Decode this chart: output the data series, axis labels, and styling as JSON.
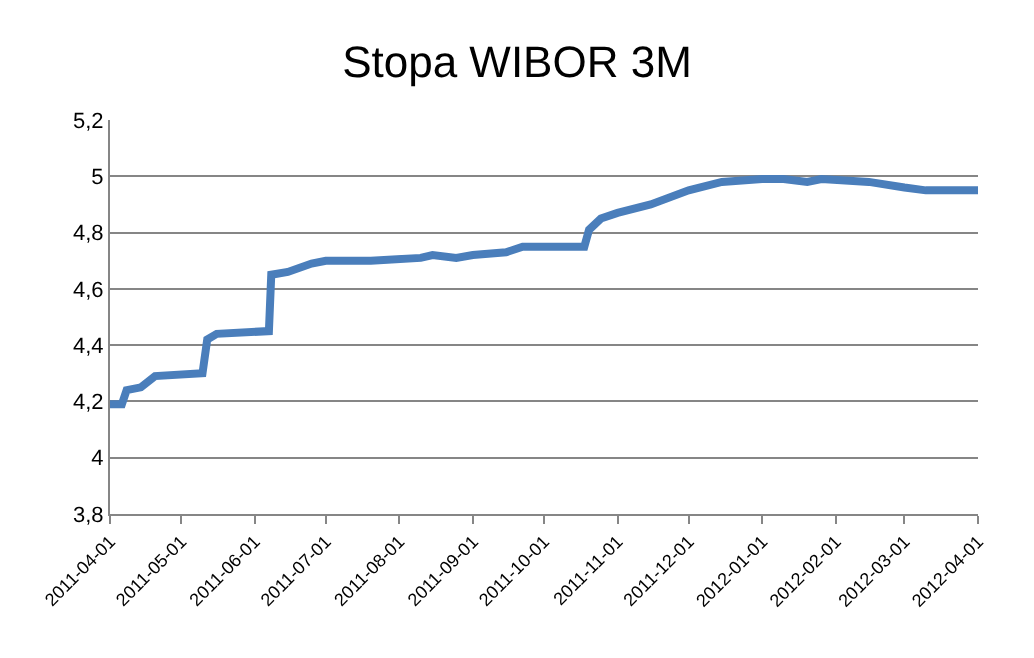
{
  "chart_data": {
    "type": "line",
    "title": "Stopa WIBOR 3M",
    "x": [
      "2011-04-01",
      "2011-04-06",
      "2011-04-08",
      "2011-04-14",
      "2011-04-20",
      "2011-05-10",
      "2011-05-12",
      "2011-05-16",
      "2011-06-07",
      "2011-06-08",
      "2011-06-15",
      "2011-06-25",
      "2011-07-01",
      "2011-07-20",
      "2011-08-10",
      "2011-08-15",
      "2011-08-25",
      "2011-09-01",
      "2011-09-15",
      "2011-09-22",
      "2011-10-18",
      "2011-10-20",
      "2011-10-25",
      "2011-11-01",
      "2011-11-15",
      "2011-12-01",
      "2011-12-15",
      "2012-01-01",
      "2012-01-10",
      "2012-01-20",
      "2012-01-26",
      "2012-02-15",
      "2012-03-01",
      "2012-03-10",
      "2012-04-01"
    ],
    "series": [
      {
        "color": "#4a7ebb",
        "values": [
          4.19,
          4.19,
          4.24,
          4.25,
          4.29,
          4.3,
          4.42,
          4.44,
          4.45,
          4.65,
          4.66,
          4.69,
          4.7,
          4.7,
          4.71,
          4.72,
          4.71,
          4.72,
          4.73,
          4.75,
          4.75,
          4.81,
          4.85,
          4.87,
          4.9,
          4.95,
          4.98,
          4.99,
          4.99,
          4.98,
          4.99,
          4.98,
          4.96,
          4.95,
          4.95
        ]
      }
    ],
    "xlim": [
      "2011-04-01",
      "2012-04-01"
    ],
    "xticks": [
      "2011-04-01",
      "2011-05-01",
      "2011-06-01",
      "2011-07-01",
      "2011-08-01",
      "2011-09-01",
      "2011-10-01",
      "2011-11-01",
      "2011-12-01",
      "2012-01-01",
      "2012-02-01",
      "2012-03-01",
      "2012-04-01"
    ],
    "ylim": [
      3.8,
      5.2
    ],
    "yticks": [
      {
        "value": 3.8,
        "label": "3,8"
      },
      {
        "value": 4,
        "label": "4"
      },
      {
        "value": 4.2,
        "label": "4,2"
      },
      {
        "value": 4.4,
        "label": "4,4"
      },
      {
        "value": 4.6,
        "label": "4,6"
      },
      {
        "value": 4.8,
        "label": "4,8"
      },
      {
        "value": 5,
        "label": "5"
      },
      {
        "value": 5.2,
        "label": "5,2"
      }
    ],
    "grid": "y",
    "legend": false,
    "marker": "none",
    "line_style": "solid"
  }
}
